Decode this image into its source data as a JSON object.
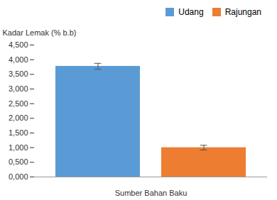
{
  "chart_data": {
    "type": "bar",
    "xlabel": "Sumber Bahan Baku",
    "ylabel": "Kadar Lemak (% b.b)",
    "categories": [
      "Udang",
      "Rajungan"
    ],
    "values": [
      3.775,
      1.0
    ],
    "errors": [
      0.1,
      0.08
    ],
    "colors": [
      "#5b9bd5",
      "#ed7d31"
    ],
    "ylim": [
      0,
      4.5
    ],
    "yticks": [
      {
        "value": 0.0,
        "label": "0,000"
      },
      {
        "value": 0.5,
        "label": "0,500"
      },
      {
        "value": 1.0,
        "label": "1,000"
      },
      {
        "value": 1.5,
        "label": "1,500"
      },
      {
        "value": 2.0,
        "label": "2,000"
      },
      {
        "value": 2.5,
        "label": "2,500"
      },
      {
        "value": 3.0,
        "label": "3,000"
      },
      {
        "value": 3.5,
        "label": "3,500"
      },
      {
        "value": 4.0,
        "label": "4,000"
      },
      {
        "value": 4.5,
        "label": "4,500"
      }
    ],
    "legend": "upper right",
    "grid": false,
    "tick_labels": "y"
  }
}
